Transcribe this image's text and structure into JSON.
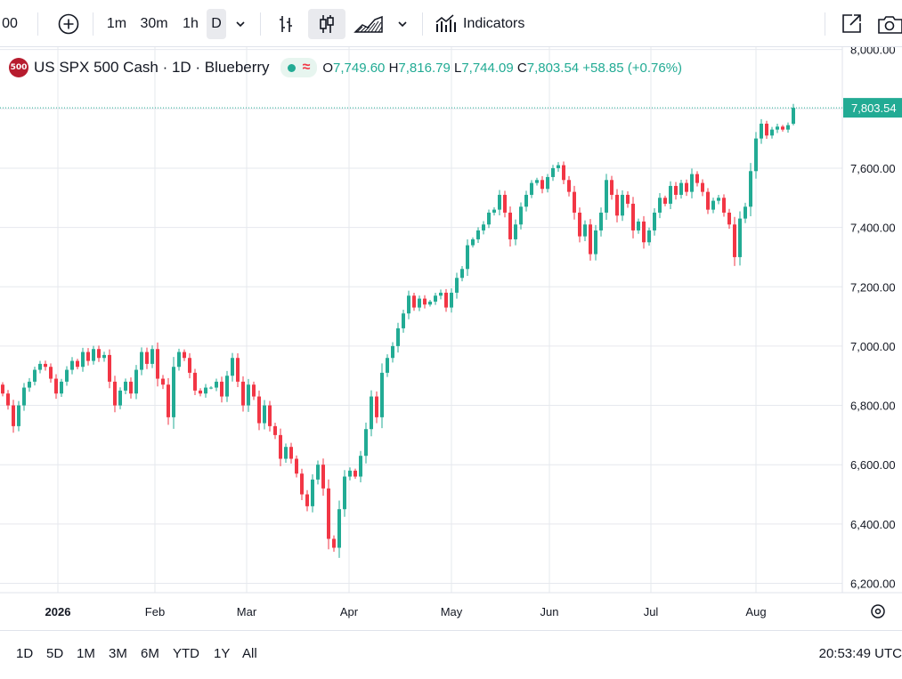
{
  "toolbar": {
    "symbol_fragment": "00",
    "intervals": [
      "1m",
      "30m",
      "1h",
      "D"
    ],
    "active_interval": "D",
    "indicators_label": "Indicators",
    "icons": [
      "add-symbol-icon",
      "chevron-down-icon",
      "bar-style-icon",
      "candle-style-icon",
      "area-style-icon",
      "indicators-icon",
      "snapshot-icon",
      "camera-icon"
    ]
  },
  "legend": {
    "badge": "500",
    "title": "US SPX 500 Cash · 1D · Blueberry",
    "open_label": "O",
    "open": "7,749.60",
    "high_label": "H",
    "high": "7,816.79",
    "low_label": "L",
    "low": "7,744.09",
    "close_label": "C",
    "close": "7,803.54",
    "change": "+58.85 (+0.76%)"
  },
  "colors": {
    "up": "#22ab94",
    "down": "#f23645",
    "grid": "#e6e8ee",
    "last_price_bg": "#22ab94"
  },
  "chart_data": {
    "type": "candlestick",
    "y_tick_labels": [
      "8,000.00",
      "7,800.00",
      "7,600.00",
      "7,400.00",
      "7,200.00",
      "7,000.00",
      "6,800.00",
      "6,600.00",
      "6,400.00",
      "6,200.00"
    ],
    "x_tick_labels": [
      "2026",
      "Feb",
      "Mar",
      "Apr",
      "May",
      "Jun",
      "Jul",
      "Aug"
    ],
    "ylim": [
      6180,
      8010
    ],
    "last_price": 7803.54,
    "last_price_label": "7,803.54",
    "closes": [
      6840,
      6800,
      6730,
      6800,
      6860,
      6880,
      6920,
      6940,
      6930,
      6890,
      6840,
      6880,
      6920,
      6950,
      6930,
      6980,
      6950,
      6990,
      6960,
      6970,
      6880,
      6800,
      6850,
      6880,
      6840,
      6920,
      6980,
      6940,
      6990,
      6890,
      6870,
      6760,
      6930,
      6980,
      6960,
      6910,
      6850,
      6840,
      6860,
      6860,
      6880,
      6830,
      6900,
      6960,
      6880,
      6800,
      6870,
      6830,
      6740,
      6800,
      6730,
      6700,
      6620,
      6660,
      6620,
      6570,
      6500,
      6460,
      6550,
      6600,
      6520,
      6350,
      6320,
      6450,
      6560,
      6580,
      6560,
      6630,
      6720,
      6830,
      6760,
      6910,
      6960,
      7000,
      7060,
      7110,
      7170,
      7130,
      7160,
      7140,
      7150,
      7170,
      7180,
      7130,
      7180,
      7230,
      7260,
      7340,
      7360,
      7390,
      7410,
      7450,
      7460,
      7510,
      7450,
      7360,
      7410,
      7470,
      7510,
      7550,
      7560,
      7530,
      7570,
      7600,
      7610,
      7560,
      7520,
      7450,
      7370,
      7410,
      7310,
      7390,
      7450,
      7560,
      7510,
      7440,
      7510,
      7480,
      7390,
      7420,
      7350,
      7390,
      7450,
      7500,
      7480,
      7540,
      7510,
      7550,
      7520,
      7580,
      7550,
      7520,
      7460,
      7490,
      7500,
      7450,
      7410,
      7300,
      7430,
      7470,
      7590,
      7700,
      7750,
      7710,
      7730,
      7740,
      7730,
      7745,
      7803.54
    ]
  },
  "bottombar": {
    "ranges": [
      "1D",
      "5D",
      "1M",
      "3M",
      "6M",
      "YTD",
      "1Y",
      "All"
    ],
    "clock": "20:53:49 UTC",
    "icons": [
      "settings-icon"
    ]
  }
}
